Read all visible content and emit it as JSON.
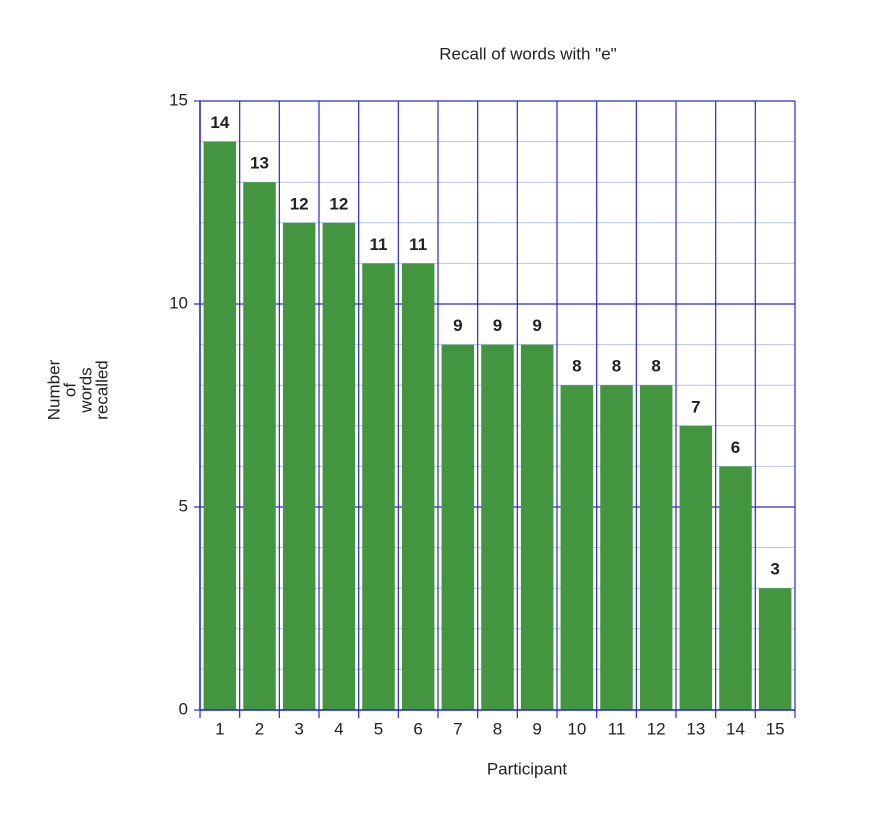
{
  "chart_data": {
    "type": "bar",
    "title": "Recall of words with \"e\"",
    "x_label": "Participant",
    "y_label": [
      "Number",
      "of",
      "words",
      "recalled"
    ],
    "categories": [
      "1",
      "2",
      "3",
      "4",
      "5",
      "6",
      "7",
      "8",
      "9",
      "10",
      "11",
      "12",
      "13",
      "14",
      "15"
    ],
    "values": [
      14,
      13,
      12,
      12,
      11,
      11,
      9,
      9,
      9,
      8,
      8,
      8,
      7,
      6,
      3
    ],
    "color": "#43963f",
    "ylim": [
      0,
      15
    ],
    "yticks": [
      0,
      5,
      10,
      15
    ],
    "minor_yticks": [
      1,
      2,
      3,
      4,
      6,
      7,
      8,
      9,
      11,
      12,
      13,
      14
    ],
    "grid": true
  }
}
